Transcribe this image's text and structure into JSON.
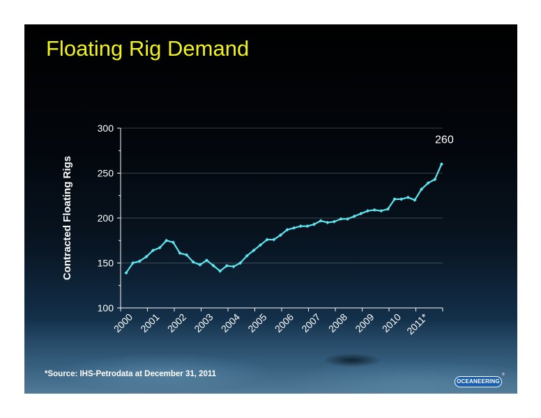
{
  "slide": {
    "title": "Floating Rig Demand",
    "source_note": "*Source:  IHS-Petrodata at December 31, 2011",
    "logo_text": "OCEANEERING",
    "title_color": "#f2f21c",
    "line_color": "#5ee6ef"
  },
  "chart_data": {
    "type": "line",
    "title": "Floating Rig Demand",
    "xlabel": "",
    "ylabel": "Contracted Floating Rigs",
    "ylim": [
      100,
      300
    ],
    "yticks": [
      "100",
      "150",
      "200",
      "250",
      "300"
    ],
    "x_tick_labels": [
      "2000",
      "2001",
      "2002",
      "2003",
      "2004",
      "2005",
      "2006",
      "2007",
      "2008",
      "2009",
      "2010",
      "2011*"
    ],
    "grid": true,
    "legend": "none",
    "annotations": [
      {
        "text": "260"
      }
    ],
    "series": [
      {
        "frequency": "quarterly, 2000 Q1 to 2011 Q4",
        "values": [
          139,
          150,
          152,
          157,
          164,
          167,
          175,
          173,
          161,
          159,
          151,
          148,
          153,
          147,
          141,
          147,
          146,
          150,
          158,
          164,
          170,
          176,
          176,
          181,
          187,
          189,
          191,
          191,
          193,
          197,
          195,
          196,
          199,
          199,
          202,
          205,
          208,
          209,
          208,
          210,
          221,
          221,
          223,
          220,
          232,
          239,
          243,
          260
        ]
      }
    ]
  }
}
